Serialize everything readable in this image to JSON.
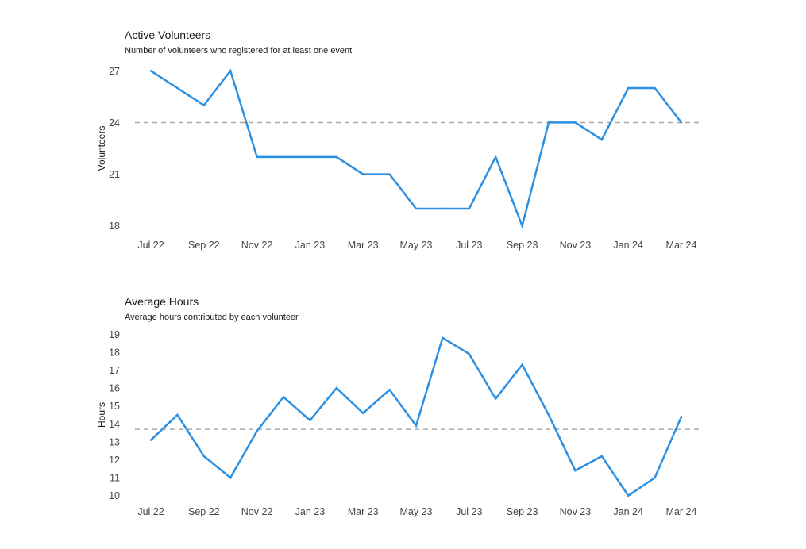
{
  "colors": {
    "line": "#2b90e3",
    "reference": "#a8a8a8"
  },
  "chart_data": [
    {
      "type": "line",
      "title": "Active Volunteers",
      "subtitle": "Number of volunteers who registered for at least one event",
      "ylabel": "Volunteers",
      "xlabel": "",
      "x": [
        "Jul 22",
        "Aug 22",
        "Sep 22",
        "Oct 22",
        "Nov 22",
        "Dec 22",
        "Jan 23",
        "Feb 23",
        "Mar 23",
        "Apr 23",
        "May 23",
        "Jun 23",
        "Jul 23",
        "Aug 23",
        "Sep 23",
        "Oct 23",
        "Nov 23",
        "Dec 23",
        "Jan 24",
        "Feb 24",
        "Mar 24"
      ],
      "x_ticks": [
        "Jul 22",
        "Sep 22",
        "Nov 22",
        "Jan 23",
        "Mar 23",
        "May 23",
        "Jul 23",
        "Sep 23",
        "Nov 23",
        "Jan 24",
        "Mar 24"
      ],
      "values": [
        27,
        26,
        25,
        27,
        22,
        22,
        22,
        22,
        21,
        21,
        19,
        19,
        19,
        22,
        18,
        24,
        24,
        23,
        26,
        26,
        24
      ],
      "y_ticks": [
        18,
        21,
        24,
        27
      ],
      "ylim": [
        17.8,
        27.2
      ],
      "reference_line": 24,
      "grid": false,
      "legend": "none"
    },
    {
      "type": "line",
      "title": "Average Hours",
      "subtitle": "Average hours contributed by each volunteer",
      "ylabel": "Hours",
      "xlabel": "",
      "x": [
        "Jul 22",
        "Aug 22",
        "Sep 22",
        "Oct 22",
        "Nov 22",
        "Dec 22",
        "Jan 23",
        "Feb 23",
        "Mar 23",
        "Apr 23",
        "May 23",
        "Jun 23",
        "Jul 23",
        "Aug 23",
        "Sep 23",
        "Oct 23",
        "Nov 23",
        "Dec 23",
        "Jan 24",
        "Feb 24",
        "Mar 24"
      ],
      "x_ticks": [
        "Jul 22",
        "Sep 22",
        "Nov 22",
        "Jan 23",
        "Mar 23",
        "May 23",
        "Jul 23",
        "Sep 23",
        "Nov 23",
        "Jan 24",
        "Mar 24"
      ],
      "values": [
        13.1,
        14.5,
        12.2,
        11.0,
        13.6,
        15.5,
        14.2,
        16.0,
        14.6,
        15.9,
        13.9,
        18.8,
        17.9,
        15.4,
        17.3,
        14.5,
        11.4,
        12.2,
        10.0,
        11.0,
        14.4
      ],
      "y_ticks": [
        10,
        11,
        12,
        13,
        14,
        15,
        16,
        17,
        18,
        19
      ],
      "ylim": [
        9.9,
        19.1
      ],
      "reference_line": 13.7,
      "grid": false,
      "legend": "none"
    }
  ]
}
